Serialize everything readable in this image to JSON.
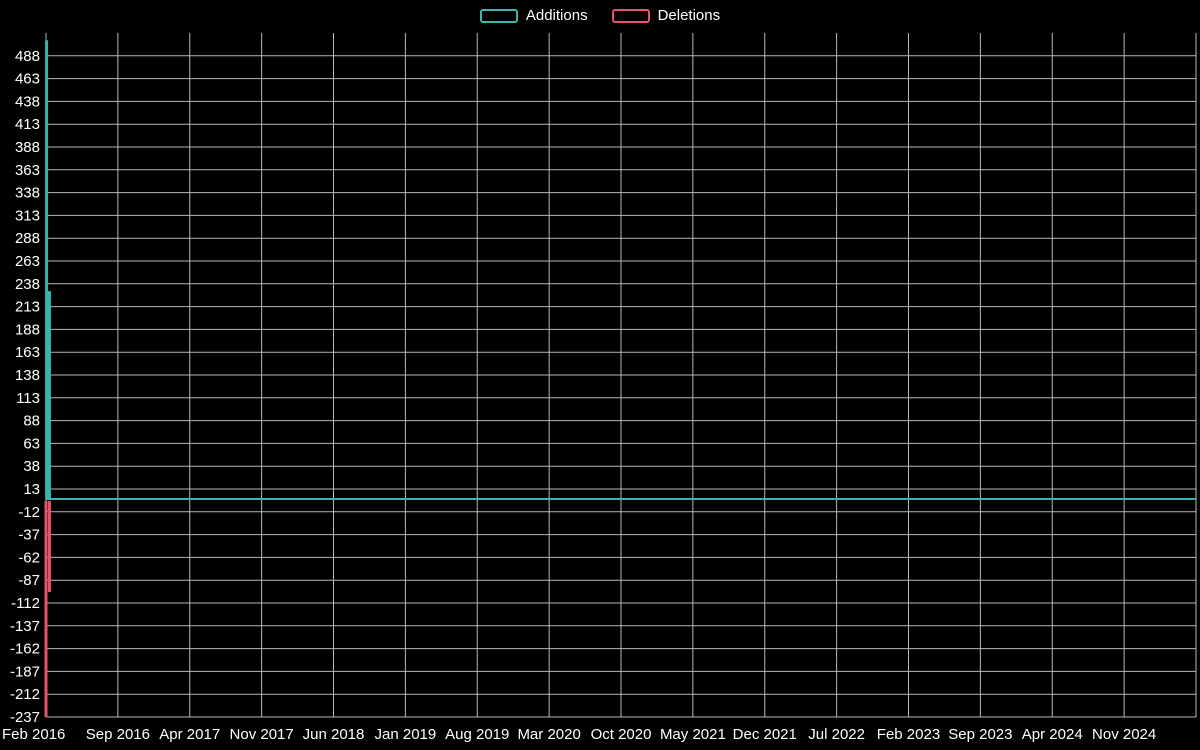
{
  "page": {
    "background_color": "#000000",
    "text_color": "#ffffff",
    "grid_color": "#b9b9b9"
  },
  "legend": {
    "items": [
      {
        "label": "Additions",
        "color": "#3ab5ac"
      },
      {
        "label": "Deletions",
        "color": "#e5536f"
      }
    ]
  },
  "chart_data": {
    "type": "area",
    "title": "",
    "legend_position": "top-center",
    "grid": true,
    "x_tick_labels": [
      "Feb 2016",
      "Sep 2016",
      "Apr 2017",
      "Nov 2017",
      "Jun 2018",
      "Jan 2019",
      "Aug 2019",
      "Mar 2020",
      "Oct 2020",
      "May 2021",
      "Dec 2021",
      "Jul 2022",
      "Feb 2023",
      "Sep 2023",
      "Apr 2024",
      "Nov 2024"
    ],
    "y_tick_values": [
      488,
      463,
      438,
      413,
      388,
      363,
      338,
      313,
      288,
      263,
      238,
      213,
      188,
      163,
      138,
      113,
      88,
      63,
      38,
      13,
      -12,
      -37,
      -62,
      -87,
      -112,
      -137,
      -162,
      -187,
      -212,
      -237
    ],
    "y_axis": {
      "max": 513,
      "min": -237,
      "tick_step": 25
    },
    "series": [
      {
        "name": "Additions",
        "color": "#3ab5ac",
        "baseline_value": 2,
        "baseline_visible": true,
        "spikes": [
          {
            "x_frac": 0.0005,
            "value": 505
          },
          {
            "x_frac": 0.003,
            "value": 230
          }
        ]
      },
      {
        "name": "Deletions",
        "color": "#e5536f",
        "baseline_value": 0,
        "baseline_visible": false,
        "spikes": [
          {
            "x_frac": 0.0,
            "value": -237
          },
          {
            "x_frac": 0.003,
            "value": -100
          }
        ]
      }
    ]
  }
}
